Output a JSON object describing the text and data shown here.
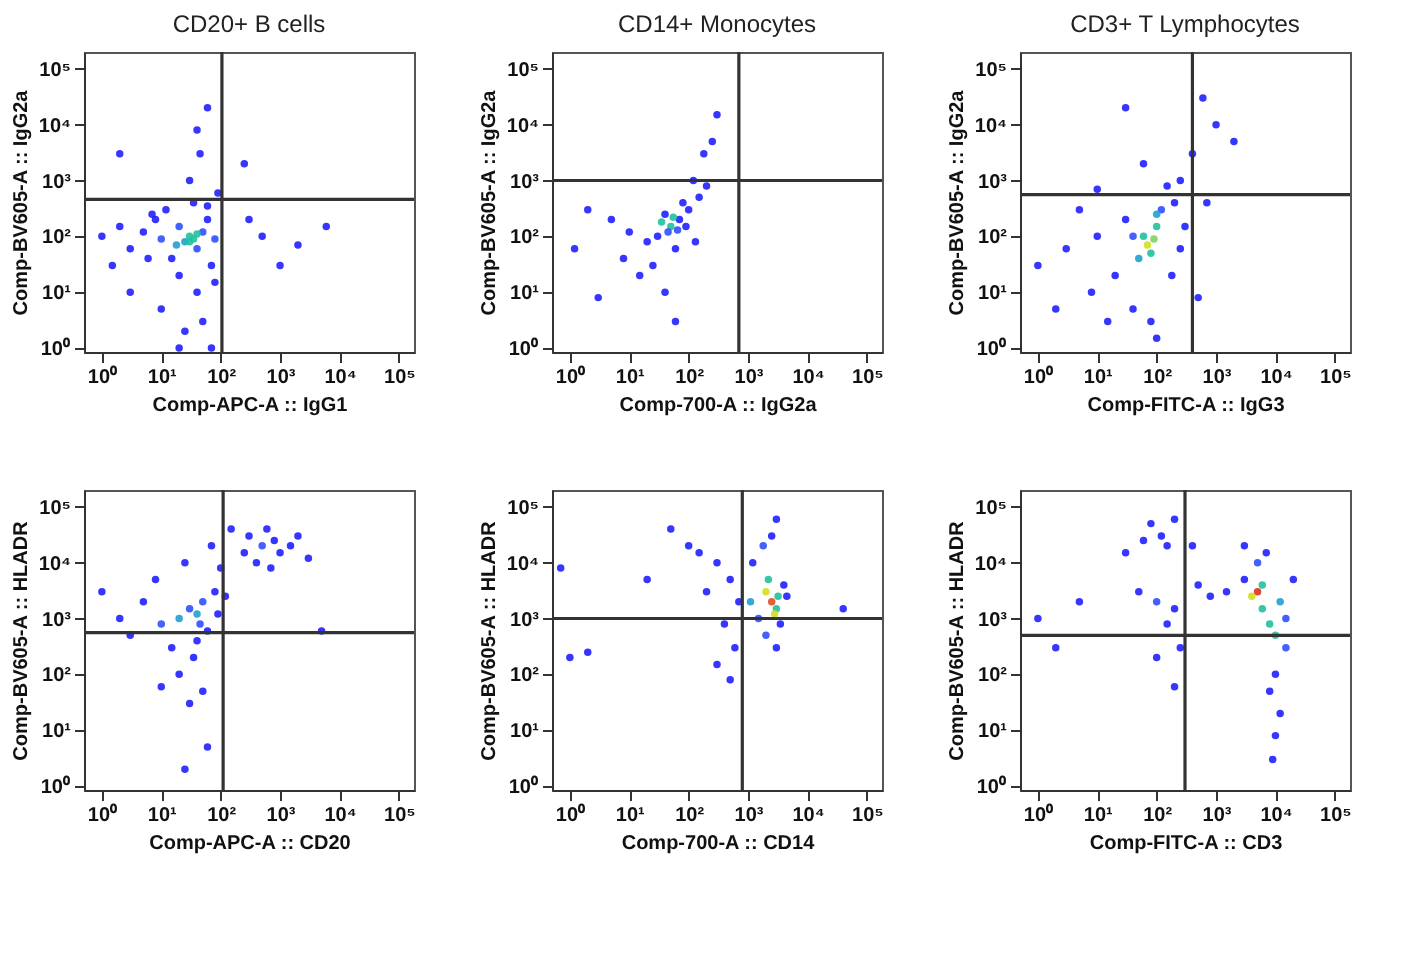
{
  "chart_data": [
    {
      "type": "scatter",
      "title": "CD20+ B cells",
      "xlabel": "Comp-APC-A :: IgG1",
      "ylabel": "Comp-BV605-A :: IgG2a",
      "log": "xy",
      "grid": false,
      "marker": "circle",
      "xlim": [
        0.5,
        180000
      ],
      "ylim": [
        0.85,
        200000
      ],
      "xticks": [
        {
          "value": 1,
          "label": "10⁰"
        },
        {
          "value": 10,
          "label": "10¹"
        },
        {
          "value": 100,
          "label": "10²"
        },
        {
          "value": 1000,
          "label": "10³"
        },
        {
          "value": 10000,
          "label": "10⁴"
        },
        {
          "value": 100000,
          "label": "10⁵"
        }
      ],
      "yticks": [
        {
          "value": 1,
          "label": "10⁰"
        },
        {
          "value": 10,
          "label": "10¹"
        },
        {
          "value": 100,
          "label": "10²"
        },
        {
          "value": 1000,
          "label": "10³"
        },
        {
          "value": 10000,
          "label": "10⁴"
        },
        {
          "value": 100000,
          "label": "10⁵"
        }
      ],
      "ref_lines": [
        {
          "axis": "x",
          "value": 105,
          "color": "#333333"
        },
        {
          "axis": "y",
          "value": 460,
          "color": "#333333"
        }
      ],
      "series": [
        {
          "x": [
            1,
            2,
            3,
            5,
            8,
            10,
            15,
            20,
            25,
            30,
            40,
            50,
            60,
            70,
            80,
            12,
            35,
            60,
            20,
            40,
            10,
            3,
            1.5,
            6,
            80,
            50,
            25,
            7,
            30,
            45,
            60,
            40,
            2,
            90,
            300,
            250,
            2000,
            6000,
            500,
            1000,
            20,
            70,
            30,
            40,
            18,
            35
          ],
          "values": [
            100,
            150,
            60,
            120,
            200,
            90,
            40,
            150,
            80,
            100,
            60,
            120,
            200,
            30,
            90,
            300,
            400,
            350,
            20,
            10,
            5,
            10,
            30,
            40,
            15,
            3,
            2,
            250,
            1000,
            3000,
            20000,
            8000,
            3000,
            600,
            200,
            2000,
            70,
            150,
            100,
            30,
            1,
            1,
            80,
            110,
            70,
            90
          ],
          "colors": [
            "#2020ff",
            "#2020ff",
            "#2020ff",
            "#2020ff",
            "#2020ff",
            "#3050ff",
            "#2020ff",
            "#3050ff",
            "#20a0d0",
            "#22c0a0",
            "#3050ff",
            "#3050ff",
            "#2020ff",
            "#2020ff",
            "#3050ff",
            "#2020ff",
            "#2020ff",
            "#2020ff",
            "#2020ff",
            "#2020ff",
            "#2020ff",
            "#2020ff",
            "#2020ff",
            "#2020ff",
            "#2020ff",
            "#2020ff",
            "#2020ff",
            "#2020ff",
            "#2020ff",
            "#2020ff",
            "#2020ff",
            "#2020ff",
            "#2020ff",
            "#2020ff",
            "#2020ff",
            "#2020ff",
            "#2020ff",
            "#2020ff",
            "#2020ff",
            "#2020ff",
            "#2020ff",
            "#2020ff",
            "#22c0a0",
            "#22c0a0",
            "#20a0d0",
            "#22c0a0"
          ]
        }
      ]
    },
    {
      "type": "scatter",
      "title": "CD14+ Monocytes",
      "xlabel": "Comp-700-A :: IgG2a",
      "ylabel": "Comp-BV605-A :: IgG2a",
      "log": "xy",
      "grid": false,
      "marker": "circle",
      "xlim": [
        0.5,
        180000
      ],
      "ylim": [
        0.85,
        200000
      ],
      "xticks": [
        {
          "value": 1,
          "label": "10⁰"
        },
        {
          "value": 10,
          "label": "10¹"
        },
        {
          "value": 100,
          "label": "10²"
        },
        {
          "value": 1000,
          "label": "10³"
        },
        {
          "value": 10000,
          "label": "10⁴"
        },
        {
          "value": 100000,
          "label": "10⁵"
        }
      ],
      "yticks": [
        {
          "value": 1,
          "label": "10⁰"
        },
        {
          "value": 10,
          "label": "10¹"
        },
        {
          "value": 100,
          "label": "10²"
        },
        {
          "value": 1000,
          "label": "10³"
        },
        {
          "value": 10000,
          "label": "10⁴"
        },
        {
          "value": 100000,
          "label": "10⁵"
        }
      ],
      "ref_lines": [
        {
          "axis": "x",
          "value": 700,
          "color": "#333333"
        },
        {
          "axis": "y",
          "value": 1000,
          "color": "#333333"
        }
      ],
      "series": [
        {
          "x": [
            50,
            30,
            70,
            100,
            20,
            40,
            60,
            10,
            5,
            2,
            150,
            200,
            120,
            80,
            25,
            15,
            40,
            60,
            3,
            1.2,
            90,
            35,
            45,
            55,
            250,
            300,
            180,
            8,
            130,
            65
          ],
          "values": [
            150,
            100,
            200,
            300,
            80,
            250,
            60,
            120,
            200,
            300,
            500,
            800,
            1000,
            400,
            30,
            20,
            10,
            3,
            8,
            60,
            150,
            180,
            120,
            220,
            5000,
            15000,
            3000,
            40,
            80,
            130
          ],
          "colors": [
            "#22c0a0",
            "#2020ff",
            "#2020ff",
            "#2020ff",
            "#2020ff",
            "#2020ff",
            "#2020ff",
            "#2020ff",
            "#2020ff",
            "#2020ff",
            "#2020ff",
            "#2020ff",
            "#2020ff",
            "#2020ff",
            "#2020ff",
            "#2020ff",
            "#2020ff",
            "#2020ff",
            "#2020ff",
            "#2020ff",
            "#2020ff",
            "#22c0a0",
            "#3050ff",
            "#22c0a0",
            "#2020ff",
            "#2020ff",
            "#2020ff",
            "#2020ff",
            "#2020ff",
            "#3050ff"
          ]
        }
      ]
    },
    {
      "type": "scatter",
      "title": "CD3+ T Lymphocytes",
      "xlabel": "Comp-FITC-A :: IgG3",
      "ylabel": "Comp-BV605-A :: IgG2a",
      "log": "xy",
      "grid": false,
      "marker": "circle",
      "xlim": [
        0.5,
        180000
      ],
      "ylim": [
        0.85,
        200000
      ],
      "xticks": [
        {
          "value": 1,
          "label": "10⁰"
        },
        {
          "value": 10,
          "label": "10¹"
        },
        {
          "value": 100,
          "label": "10²"
        },
        {
          "value": 1000,
          "label": "10³"
        },
        {
          "value": 10000,
          "label": "10⁴"
        },
        {
          "value": 100000,
          "label": "10⁵"
        }
      ],
      "yticks": [
        {
          "value": 1,
          "label": "10⁰"
        },
        {
          "value": 10,
          "label": "10¹"
        },
        {
          "value": 100,
          "label": "10²"
        },
        {
          "value": 1000,
          "label": "10³"
        },
        {
          "value": 10000,
          "label": "10⁴"
        },
        {
          "value": 100000,
          "label": "10⁵"
        }
      ],
      "ref_lines": [
        {
          "axis": "x",
          "value": 400,
          "color": "#333333"
        },
        {
          "axis": "y",
          "value": 560,
          "color": "#333333"
        }
      ],
      "series": [
        {
          "x": [
            70,
            60,
            80,
            100,
            50,
            120,
            200,
            150,
            250,
            30,
            10,
            3,
            1,
            5,
            20,
            40,
            80,
            100,
            15,
            2,
            8,
            250,
            300,
            180,
            60,
            30,
            600,
            1000,
            2000,
            400,
            700,
            500,
            10,
            100,
            40,
            90
          ],
          "values": [
            70,
            100,
            50,
            150,
            40,
            300,
            400,
            800,
            1000,
            200,
            100,
            60,
            30,
            300,
            20,
            5,
            3,
            1.5,
            3,
            5,
            10,
            60,
            150,
            20,
            2000,
            20000,
            30000,
            10000,
            5000,
            3000,
            400,
            8,
            700,
            250,
            100,
            90
          ],
          "colors": [
            "#d0e020",
            "#22c0a0",
            "#22c0a0",
            "#22c0a0",
            "#20a0d0",
            "#3050ff",
            "#2020ff",
            "#2020ff",
            "#2020ff",
            "#2020ff",
            "#2020ff",
            "#2020ff",
            "#2020ff",
            "#2020ff",
            "#2020ff",
            "#2020ff",
            "#2020ff",
            "#2020ff",
            "#2020ff",
            "#2020ff",
            "#2020ff",
            "#2020ff",
            "#2020ff",
            "#2020ff",
            "#2020ff",
            "#2020ff",
            "#2020ff",
            "#2020ff",
            "#2020ff",
            "#2020ff",
            "#2020ff",
            "#2020ff",
            "#2020ff",
            "#20a0d0",
            "#3050ff",
            "#80d060"
          ]
        }
      ]
    },
    {
      "type": "scatter",
      "xlabel": "Comp-APC-A :: CD20",
      "ylabel": "Comp-BV605-A :: HLADR",
      "log": "xy",
      "grid": false,
      "marker": "circle",
      "xlim": [
        0.5,
        180000
      ],
      "ylim": [
        0.85,
        200000
      ],
      "xticks": [
        {
          "value": 1,
          "label": "10⁰"
        },
        {
          "value": 10,
          "label": "10¹"
        },
        {
          "value": 100,
          "label": "10²"
        },
        {
          "value": 1000,
          "label": "10³"
        },
        {
          "value": 10000,
          "label": "10⁴"
        },
        {
          "value": 100000,
          "label": "10⁵"
        }
      ],
      "yticks": [
        {
          "value": 1,
          "label": "10⁰"
        },
        {
          "value": 10,
          "label": "10¹"
        },
        {
          "value": 100,
          "label": "10²"
        },
        {
          "value": 1000,
          "label": "10³"
        },
        {
          "value": 10000,
          "label": "10⁴"
        },
        {
          "value": 100000,
          "label": "10⁵"
        }
      ],
      "ref_lines": [
        {
          "axis": "x",
          "value": 110,
          "color": "#333333"
        },
        {
          "axis": "y",
          "value": 560,
          "color": "#333333"
        }
      ],
      "series": [
        {
          "x": [
            20,
            30,
            10,
            50,
            60,
            40,
            15,
            5,
            2,
            1,
            3,
            8,
            25,
            70,
            80,
            90,
            35,
            20,
            50,
            30,
            60,
            25,
            10,
            100,
            150,
            300,
            500,
            800,
            1000,
            400,
            600,
            1500,
            2000,
            3000,
            250,
            700,
            5000,
            120,
            40,
            45
          ],
          "values": [
            1000,
            1500,
            800,
            2000,
            600,
            400,
            300,
            2000,
            1000,
            3000,
            500,
            5000,
            10000,
            20000,
            3000,
            1200,
            200,
            100,
            50,
            30,
            5,
            2,
            60,
            8000,
            40000,
            30000,
            20000,
            25000,
            15000,
            10000,
            40000,
            20000,
            30000,
            12000,
            15000,
            8000,
            600,
            2500,
            1200,
            800
          ],
          "colors": [
            "#20a0d0",
            "#3050ff",
            "#3050ff",
            "#3050ff",
            "#2020ff",
            "#2020ff",
            "#2020ff",
            "#2020ff",
            "#2020ff",
            "#2020ff",
            "#2020ff",
            "#2020ff",
            "#2020ff",
            "#2020ff",
            "#2020ff",
            "#2020ff",
            "#2020ff",
            "#2020ff",
            "#2020ff",
            "#2020ff",
            "#2020ff",
            "#2020ff",
            "#2020ff",
            "#2020ff",
            "#2020ff",
            "#2020ff",
            "#3050ff",
            "#2020ff",
            "#2020ff",
            "#2020ff",
            "#2020ff",
            "#2020ff",
            "#2020ff",
            "#2020ff",
            "#2020ff",
            "#2020ff",
            "#2020ff",
            "#2020ff",
            "#20a0d0",
            "#3050ff"
          ]
        }
      ]
    },
    {
      "type": "scatter",
      "xlabel": "Comp-700-A :: CD14",
      "ylabel": "Comp-BV605-A :: HLADR",
      "log": "xy",
      "grid": false,
      "marker": "circle",
      "xlim": [
        0.5,
        180000
      ],
      "ylim": [
        0.85,
        200000
      ],
      "xticks": [
        {
          "value": 1,
          "label": "10⁰"
        },
        {
          "value": 10,
          "label": "10¹"
        },
        {
          "value": 100,
          "label": "10²"
        },
        {
          "value": 1000,
          "label": "10³"
        },
        {
          "value": 10000,
          "label": "10⁴"
        },
        {
          "value": 100000,
          "label": "10⁵"
        }
      ],
      "yticks": [
        {
          "value": 1,
          "label": "10⁰"
        },
        {
          "value": 10,
          "label": "10¹"
        },
        {
          "value": 100,
          "label": "10²"
        },
        {
          "value": 1000,
          "label": "10³"
        },
        {
          "value": 10000,
          "label": "10⁴"
        },
        {
          "value": 100000,
          "label": "10⁵"
        }
      ],
      "ref_lines": [
        {
          "axis": "x",
          "value": 800,
          "color": "#333333"
        },
        {
          "axis": "y",
          "value": 1000,
          "color": "#333333"
        }
      ],
      "series": [
        {
          "x": [
            2500,
            2000,
            3000,
            2200,
            1500,
            3500,
            4000,
            1200,
            2500,
            3000,
            1800,
            4500,
            2000,
            3000,
            1100,
            500,
            300,
            100,
            50,
            20,
            0.7,
            1,
            2,
            200,
            400,
            300,
            500,
            600,
            150,
            700,
            40000,
            2800,
            3200
          ],
          "values": [
            2000,
            3000,
            1500,
            5000,
            1000,
            800,
            4000,
            10000,
            30000,
            60000,
            20000,
            2500,
            500,
            300,
            2000,
            5000,
            10000,
            20000,
            40000,
            5000,
            8000,
            200,
            250,
            3000,
            800,
            150,
            80,
            300,
            15000,
            2000,
            1500,
            1200,
            2500
          ],
          "colors": [
            "#e05020",
            "#d0e020",
            "#22c0a0",
            "#22c0a0",
            "#3050ff",
            "#2020ff",
            "#2020ff",
            "#2020ff",
            "#2020ff",
            "#2020ff",
            "#3050ff",
            "#2020ff",
            "#3050ff",
            "#2020ff",
            "#20a0d0",
            "#2020ff",
            "#2020ff",
            "#2020ff",
            "#2020ff",
            "#2020ff",
            "#2020ff",
            "#2020ff",
            "#2020ff",
            "#2020ff",
            "#2020ff",
            "#2020ff",
            "#2020ff",
            "#2020ff",
            "#2020ff",
            "#2020ff",
            "#2020ff",
            "#d0e020",
            "#22c0a0"
          ]
        }
      ]
    },
    {
      "type": "scatter",
      "xlabel": "Comp-FITC-A :: CD3",
      "ylabel": "Comp-BV605-A :: HLADR",
      "log": "xy",
      "grid": false,
      "marker": "circle",
      "xlim": [
        0.5,
        180000
      ],
      "ylim": [
        0.85,
        200000
      ],
      "xticks": [
        {
          "value": 1,
          "label": "10⁰"
        },
        {
          "value": 10,
          "label": "10¹"
        },
        {
          "value": 100,
          "label": "10²"
        },
        {
          "value": 1000,
          "label": "10³"
        },
        {
          "value": 10000,
          "label": "10⁴"
        },
        {
          "value": 100000,
          "label": "10⁵"
        }
      ],
      "yticks": [
        {
          "value": 1,
          "label": "10⁰"
        },
        {
          "value": 10,
          "label": "10¹"
        },
        {
          "value": 100,
          "label": "10²"
        },
        {
          "value": 1000,
          "label": "10³"
        },
        {
          "value": 10000,
          "label": "10⁴"
        },
        {
          "value": 100000,
          "label": "10⁵"
        }
      ],
      "ref_lines": [
        {
          "axis": "x",
          "value": 300,
          "color": "#333333"
        },
        {
          "axis": "y",
          "value": 500,
          "color": "#333333"
        }
      ],
      "series": [
        {
          "x": [
            5000,
            4000,
            6000,
            10000,
            8000,
            5000,
            3000,
            7000,
            12000,
            15000,
            10000,
            8000,
            12000,
            10000,
            9000,
            6000,
            3000,
            1500,
            800,
            500,
            120,
            80,
            200,
            150,
            60,
            100,
            200,
            50,
            150,
            250,
            100,
            200,
            30,
            5,
            1,
            2,
            15000,
            20000,
            400
          ],
          "values": [
            3000,
            2500,
            4000,
            500,
            800,
            10000,
            20000,
            15000,
            2000,
            300,
            100,
            50,
            20,
            8,
            3,
            1500,
            5000,
            3000,
            2500,
            4000,
            30000,
            50000,
            60000,
            20000,
            25000,
            2000,
            1500,
            3000,
            800,
            300,
            200,
            60,
            15000,
            2000,
            1000,
            300,
            1000,
            5000,
            20000
          ],
          "colors": [
            "#e03020",
            "#d0e020",
            "#22c0a0",
            "#22c0a0",
            "#22c0a0",
            "#3050ff",
            "#2020ff",
            "#2020ff",
            "#20a0d0",
            "#3050ff",
            "#2020ff",
            "#2020ff",
            "#2020ff",
            "#2020ff",
            "#2020ff",
            "#22c0a0",
            "#2020ff",
            "#2020ff",
            "#2020ff",
            "#2020ff",
            "#2020ff",
            "#2020ff",
            "#2020ff",
            "#2020ff",
            "#2020ff",
            "#3050ff",
            "#2020ff",
            "#2020ff",
            "#2020ff",
            "#2020ff",
            "#2020ff",
            "#2020ff",
            "#2020ff",
            "#2020ff",
            "#2020ff",
            "#2020ff",
            "#3050ff",
            "#2020ff",
            "#2020ff"
          ]
        }
      ]
    }
  ]
}
